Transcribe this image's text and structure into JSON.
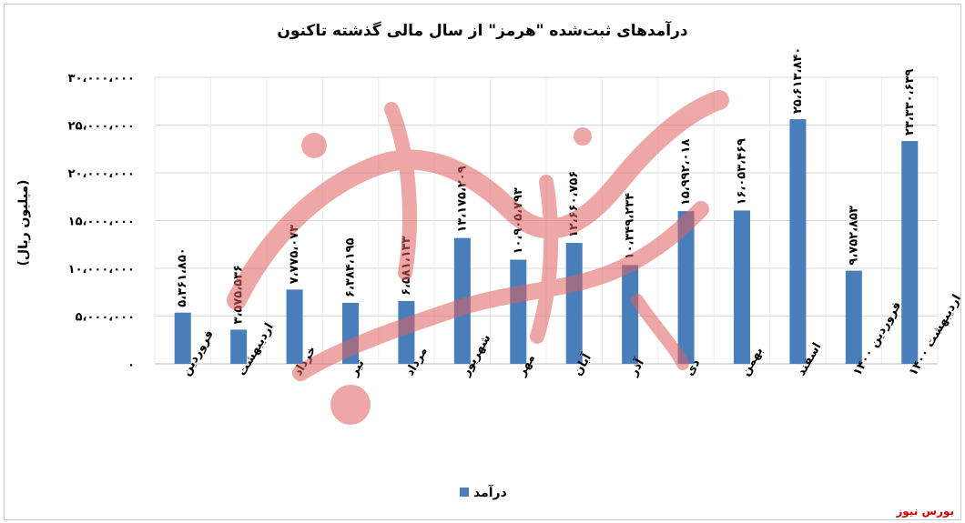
{
  "chart_data": {
    "type": "bar",
    "title": "درآمدهای ثبت‌شده \"هرمز\" از سال مالی گذشته تاکنون",
    "ylabel": "(میلیون ریال)",
    "xlabel": "",
    "ylim": [
      0,
      30000000
    ],
    "yticks": [
      0,
      5000000,
      10000000,
      15000000,
      20000000,
      25000000,
      30000000
    ],
    "ytick_labels": [
      "۰",
      "۵،۰۰۰،۰۰۰",
      "۱۰،۰۰۰،۰۰۰",
      "۱۵،۰۰۰،۰۰۰",
      "۲۰،۰۰۰،۰۰۰",
      "۲۵،۰۰۰،۰۰۰",
      "۳۰،۰۰۰،۰۰۰"
    ],
    "categories": [
      "فروردین",
      "اردیبهشت",
      "خرداد",
      "تیر",
      "مرداد",
      "شهریور",
      "مهر",
      "آبان",
      "آذر",
      "دی",
      "بهمن",
      "اسفند",
      "فروردین ۱۴۰۰",
      "اردیبهشت ۱۴۰۰"
    ],
    "values": [
      5361850,
      3575536,
      7775073,
      6384195,
      6581133,
      13175209,
      10905793,
      12660756,
      10349234,
      15992018,
      16053469,
      25613840,
      9752853,
      23330639
    ],
    "value_labels": [
      "۵،۳۶۱،۸۵۰",
      "۳،۵۷۵،۵۳۶",
      "۷،۷۷۵،۰۷۳",
      "۶،۳۸۴،۱۹۵",
      "۶،۵۸۱،۱۳۳",
      "۱۳،۱۷۵،۲۰۹",
      "۱۰،۹۰۵،۷۹۳",
      "۱۲،۶۶۰،۷۵۶",
      "۱۰،۳۴۹،۲۳۴",
      "۱۵،۹۹۲،۰۱۸",
      "۱۶،۰۵۳،۴۶۹",
      "۲۵،۶۱۳،۸۴۰",
      "۹،۷۵۲،۸۵۳",
      "۲۳،۳۳۰،۶۳۹"
    ],
    "series": [
      {
        "name": "درآمد",
        "color": "#4a7ebb"
      }
    ],
    "legend": "bottom-center",
    "grid": true
  },
  "credit": "بورس نیوز",
  "watermark": "بورس نیوز"
}
